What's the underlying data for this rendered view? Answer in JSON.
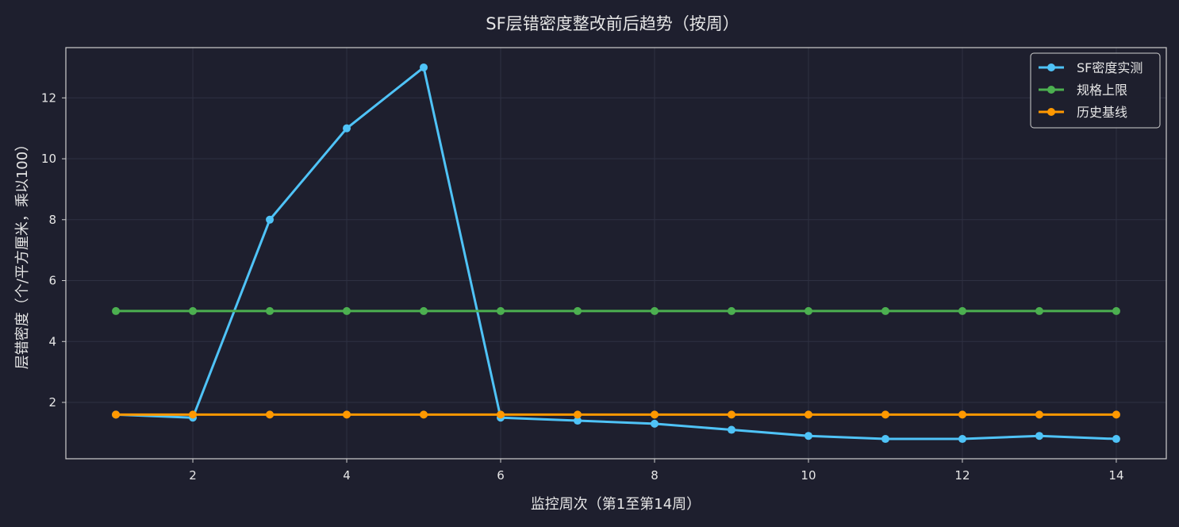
{
  "chart_data": {
    "type": "line",
    "title": "SF层错密度整改前后趋势（按周）",
    "xlabel": "监控周次（第1至第14周）",
    "ylabel": "层错密度（个/平方厘米，乘以100）",
    "xlim": [
      0.35,
      14.65
    ],
    "ylim": [
      0.15,
      13.65
    ],
    "x_ticks": [
      2,
      4,
      6,
      8,
      10,
      12,
      14
    ],
    "y_ticks": [
      2,
      4,
      6,
      8,
      10,
      12
    ],
    "grid": true,
    "legend_position": "top-right",
    "x": [
      1,
      2,
      3,
      4,
      5,
      6,
      7,
      8,
      9,
      10,
      11,
      12,
      13,
      14
    ],
    "series": [
      {
        "name": "SF密度实测",
        "color": "#4fc3f7",
        "values": [
          1.6,
          1.5,
          8.0,
          11.0,
          13.0,
          1.5,
          1.4,
          1.3,
          1.1,
          0.9,
          0.8,
          0.8,
          0.9,
          0.8
        ]
      },
      {
        "name": "规格上限",
        "color": "#4caf50",
        "values": [
          5,
          5,
          5,
          5,
          5,
          5,
          5,
          5,
          5,
          5,
          5,
          5,
          5,
          5
        ]
      },
      {
        "name": "历史基线",
        "color": "#ff9800",
        "values": [
          1.6,
          1.6,
          1.6,
          1.6,
          1.6,
          1.6,
          1.6,
          1.6,
          1.6,
          1.6,
          1.6,
          1.6,
          1.6,
          1.6
        ]
      }
    ]
  },
  "colors": {
    "background": "#1e1f2e",
    "axis": "#cfcfcf",
    "grid": "#2f3142",
    "text": "#e6e6e6",
    "legend_bg": "#1e1f2e"
  }
}
